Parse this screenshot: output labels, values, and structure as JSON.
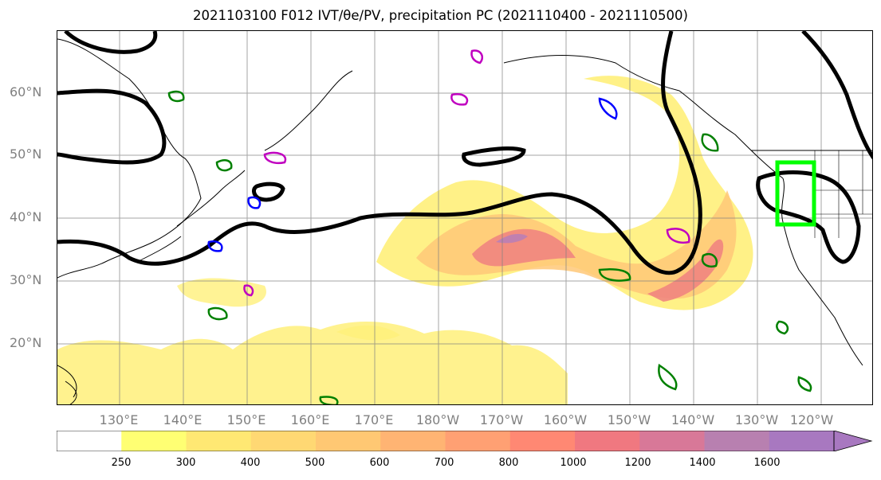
{
  "title": "2021103100 F012 IVT/θe/PV, precipitation PC (2021110400 - 2021110500)",
  "latitude_labels": [
    "60°N",
    "50°N",
    "40°N",
    "30°N",
    "20°N"
  ],
  "longitude_labels": [
    "130°E",
    "140°E",
    "150°E",
    "160°E",
    "170°E",
    "180°W",
    "170°W",
    "160°W",
    "150°W",
    "140°W",
    "130°W",
    "120°W"
  ],
  "colorbar": {
    "tick_labels": [
      "250",
      "300",
      "400",
      "500",
      "600",
      "700",
      "800",
      "1000",
      "1200",
      "1400",
      "1600"
    ],
    "colors": [
      "#ffffff",
      "#ffff73",
      "#ffe873",
      "#ffd873",
      "#ffc873",
      "#ffb473",
      "#ffa073",
      "#ff8873",
      "#f07880",
      "#d87898",
      "#b880b0",
      "#a878c0"
    ]
  },
  "contour_colors": {
    "ivt_fill_light": "#fff07a",
    "ivt_fill_mid": "#ffc878",
    "ivt_fill_high": "#f08080",
    "ivt_fill_max": "#c080b0",
    "theta_e": "#000000",
    "pv_green": "#008000",
    "pv_blue": "#0000ff",
    "pv_magenta": "#c000c0",
    "target_box": "#00ff00"
  }
}
